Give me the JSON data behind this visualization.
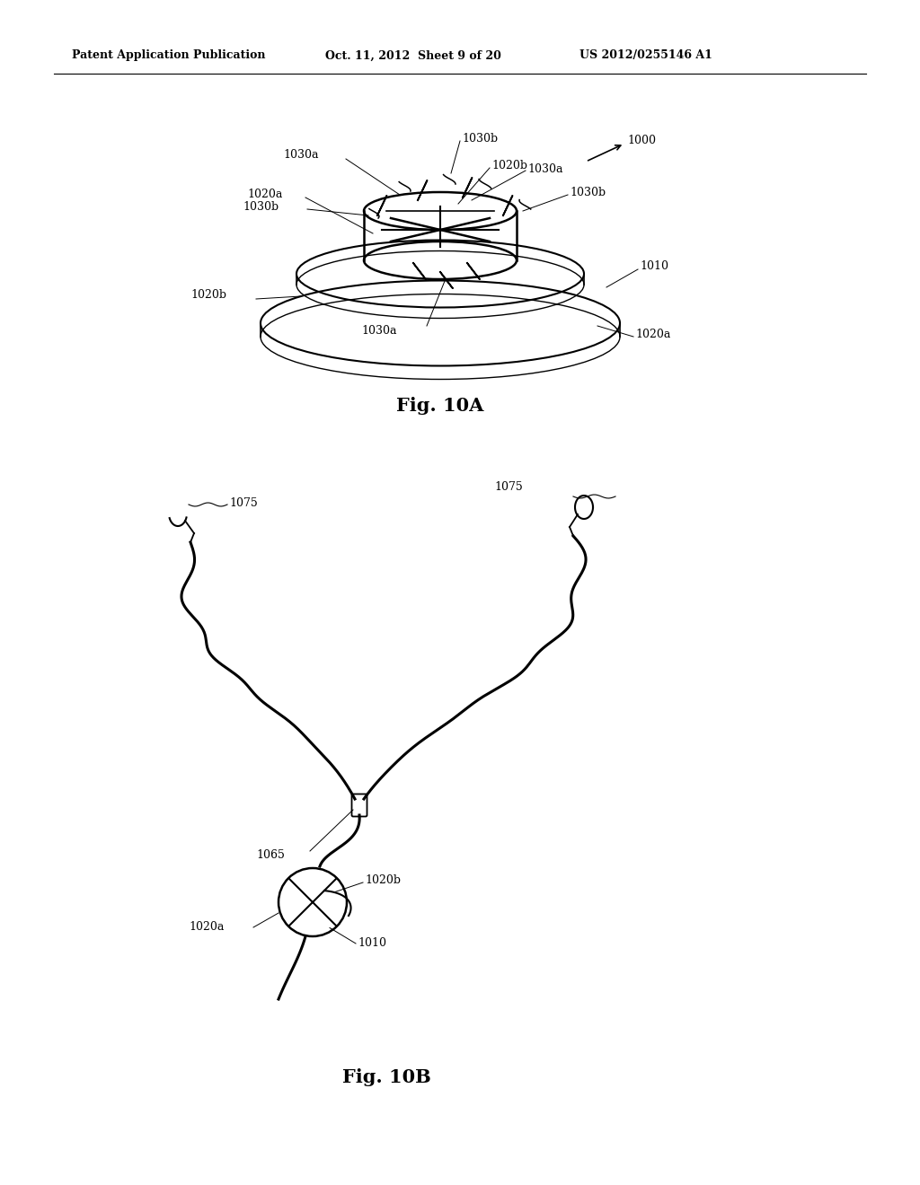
{
  "bg_color": "#ffffff",
  "header_left": "Patent Application Publication",
  "header_center": "Oct. 11, 2012  Sheet 9 of 20",
  "header_right": "US 2012/0255146 A1",
  "fig10a_label": "Fig. 10A",
  "fig10b_label": "Fig. 10B",
  "label_1000": "1000",
  "label_1010": "1010",
  "label_1020a_top": "1020a",
  "label_1020b_left": "1020b",
  "label_1020a_bot": "1020a",
  "label_1030a_topleft": "1030a",
  "label_1030a_topright": "1030a",
  "label_1030a_bot": "1030a",
  "label_1030b_top": "1030b",
  "label_1030b_left": "1030b",
  "label_1030b_right": "1030b",
  "label_1020b_top": "1020b",
  "label_1075_left": "1075",
  "label_1075_right": "1075",
  "label_1065": "1065",
  "label_1020b_circ": "1020b",
  "label_1020a_circ": "1020a",
  "label_1010_circ": "1010"
}
